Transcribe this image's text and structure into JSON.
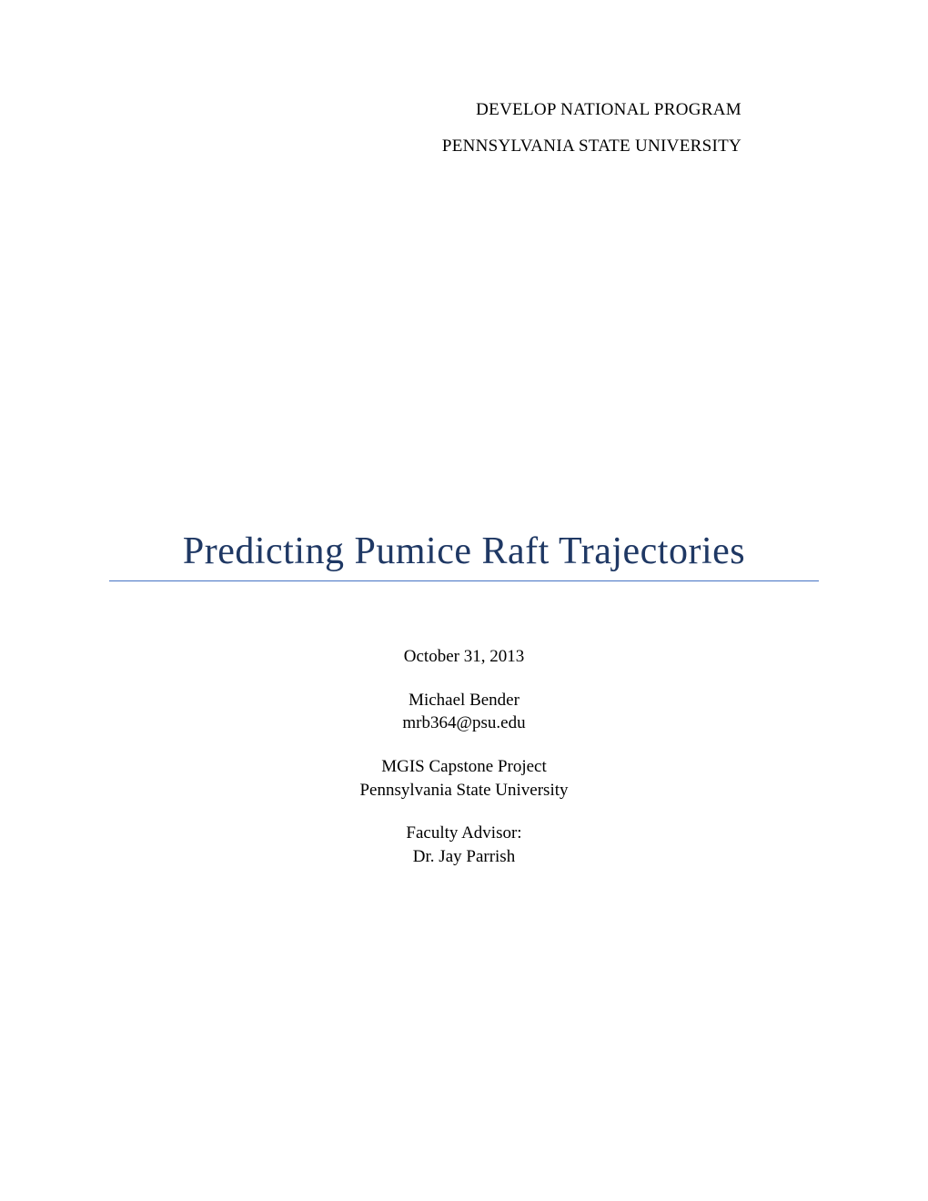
{
  "header": {
    "program": "DEVELOP NATIONAL PROGRAM",
    "institution": "PENNSYLVANIA STATE UNIVERSITY"
  },
  "title": "Predicting Pumice Raft Trajectories",
  "info": {
    "date": "October 31, 2013",
    "author_name": "Michael Bender",
    "author_email": "mrb364@psu.edu",
    "project_type": "MGIS Capstone Project",
    "university": "Pennsylvania State University",
    "advisor_label": "Faculty Advisor:",
    "advisor_name": "Dr. Jay Parrish"
  },
  "colors": {
    "title_color": "#1f3864",
    "underline_color": "#4472c4",
    "text_color": "#000000",
    "background_color": "#ffffff"
  },
  "typography": {
    "font_family": "Times New Roman",
    "header_fontsize": 19,
    "title_fontsize": 42,
    "info_fontsize": 19
  }
}
